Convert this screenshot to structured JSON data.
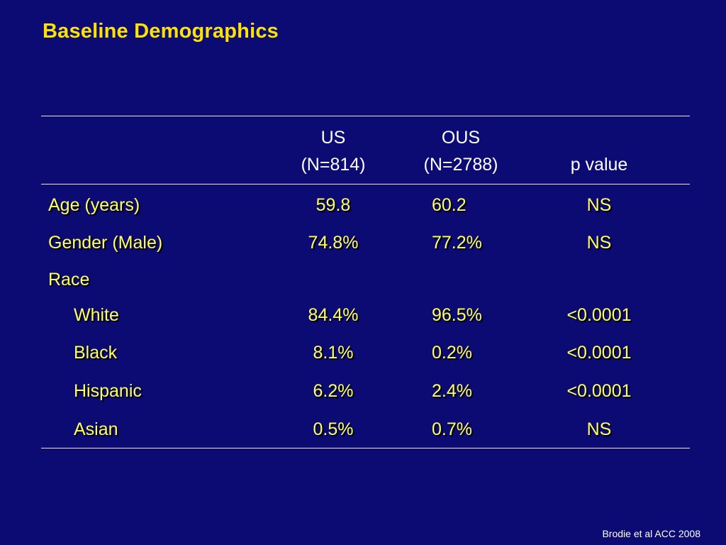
{
  "slide": {
    "title": "Baseline Demographics",
    "citation": "Brodie et al ACC 2008"
  },
  "colors": {
    "background": "#0b0b73",
    "title": "#ffe300",
    "cell_text": "#ffff66",
    "header_text": "#ffffff",
    "rules": "#e8e8f0"
  },
  "table": {
    "headers": {
      "us": {
        "name": "US",
        "n": "(N=814)"
      },
      "ous": {
        "name": "OUS",
        "n": "(N=2788)"
      },
      "p": "p value"
    },
    "rows": [
      {
        "label": "Age (years)",
        "us": "59.8",
        "ous": "60.2",
        "p": "NS"
      },
      {
        "label": "Gender (Male)",
        "us": "74.8%",
        "ous": "77.2%",
        "p": "NS"
      },
      {
        "label": "Race",
        "us": "",
        "ous": "",
        "p": ""
      },
      {
        "label": "White",
        "us": "84.4%",
        "ous": "96.5%",
        "p": "<0.0001"
      },
      {
        "label": "Black",
        "us": "8.1%",
        "ous": "0.2%",
        "p": "<0.0001"
      },
      {
        "label": "Hispanic",
        "us": "6.2%",
        "ous": "2.4%",
        "p": "<0.0001"
      },
      {
        "label": "Asian",
        "us": "0.5%",
        "ous": "0.7%",
        "p": "NS"
      }
    ]
  }
}
